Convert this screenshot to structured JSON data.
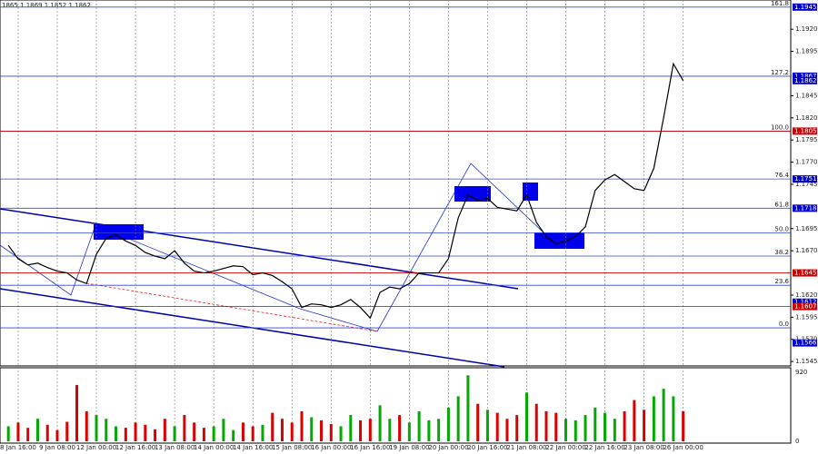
{
  "chart_data": {
    "type": "line",
    "header": "1865 1.1869 1.1852 1.1862",
    "color": "#000000",
    "categories": [
      null,
      "8 Jan 16:00",
      null,
      null,
      null,
      "9 Jan 08:00",
      null,
      null,
      null,
      "12 Jan 00:00",
      null,
      null,
      null,
      "12 Jan 16:00",
      null,
      null,
      null,
      "13 Jan 08:00",
      null,
      null,
      null,
      "14 Jan 00:00",
      null,
      null,
      null,
      "14 Jan 16:00",
      null,
      null,
      null,
      "15 Jan 08:00",
      null,
      null,
      null,
      "16 Jan 00:00",
      null,
      null,
      null,
      "16 Jan 16:00",
      null,
      null,
      null,
      "19 Jan 08:00",
      null,
      null,
      null,
      "20 Jan 00:00",
      null,
      null,
      null,
      "20 Jan 16:00",
      null,
      null,
      null,
      "21 Jan 08:00",
      null,
      null,
      null,
      "22 Jan 00:00",
      null,
      null,
      null,
      "22 Jan 16:00",
      null,
      null,
      null,
      "23 Jan 08:00",
      null,
      null,
      null,
      "26 Jan 00:00"
    ],
    "values": [
      1.1676,
      1.1661,
      1.1654,
      1.1656,
      1.1651,
      1.1647,
      1.1645,
      1.1637,
      1.1633,
      1.1666,
      1.1684,
      1.1688,
      1.1681,
      1.1676,
      1.1668,
      1.1664,
      1.1661,
      1.167,
      1.1656,
      1.1647,
      1.1645,
      1.1647,
      1.165,
      1.1653,
      1.1652,
      1.1643,
      1.1645,
      1.1642,
      1.1635,
      1.1627,
      1.1606,
      1.161,
      1.1609,
      1.1606,
      1.1609,
      1.1615,
      1.1606,
      1.1594,
      1.1623,
      1.1629,
      1.1627,
      1.1633,
      1.1645,
      1.1645,
      1.1645,
      1.1661,
      1.1707,
      1.1733,
      1.1727,
      1.1729,
      1.1719,
      1.1717,
      1.1715,
      1.1733,
      1.1702,
      1.1686,
      1.1678,
      1.1681,
      1.1686,
      1.1697,
      1.1738,
      1.175,
      1.1756,
      1.1748,
      1.174,
      1.1738,
      1.1763,
      1.182,
      1.1881,
      1.1862
    ],
    "ylim": [
      1.154,
      1.1953
    ],
    "yticks": [
      1.1545,
      {
        "value": 1.157,
        "label": "1.1570"
      },
      1.1595,
      {
        "value": 1.162,
        "label": "1.1620"
      },
      {
        "value": 1.167,
        "label": "1.1670"
      },
      1.1695,
      1.1745,
      {
        "value": 1.177,
        "label": "1.1770"
      },
      1.1795,
      {
        "value": 1.182,
        "label": "1.1820"
      },
      1.1845,
      1.1895,
      {
        "value": 1.192,
        "label": "1.1920"
      }
    ],
    "price_levels": [
      {
        "value": 1.1945,
        "color": "#0000cc"
      },
      {
        "value": 1.1867,
        "color": "#0000cc"
      },
      {
        "value": 1.1862,
        "color": "#0000cc"
      },
      {
        "value": 1.1805,
        "color": "#cc0000"
      },
      {
        "value": 1.1751,
        "color": "#0000cc"
      },
      {
        "value": 1.1718,
        "color": "#0000cc"
      },
      {
        "value": 1.1645,
        "color": "#cc0000"
      },
      {
        "value": 1.1612,
        "color": "#0000cc"
      },
      {
        "value": 1.1607,
        "color": "#cc0000"
      },
      {
        "value": 1.1566,
        "color": "#0000cc"
      }
    ],
    "fib_levels": [
      {
        "label": "161.8",
        "value": 1.1945
      },
      {
        "label": "127.2",
        "value": 1.1867
      },
      {
        "label": "100.0",
        "value": 1.1805
      },
      {
        "label": "76.4",
        "value": 1.1751
      },
      {
        "label": "61.8",
        "value": 1.1718
      },
      {
        "label": "50.0",
        "value": 1.169
      },
      {
        "label": "38.2",
        "value": 1.1664
      },
      {
        "label": "23.6",
        "value": 1.1631
      },
      {
        "label": "0.0",
        "value": 1.1583
      }
    ],
    "volume": {
      "values": [
        200,
        250,
        180,
        300,
        220,
        150,
        260,
        750,
        400,
        350,
        300,
        200,
        180,
        250,
        220,
        160,
        300,
        200,
        350,
        250,
        180,
        200,
        300,
        150,
        250,
        200,
        220,
        380,
        300,
        250,
        400,
        320,
        280,
        230,
        200,
        350,
        280,
        300,
        480,
        300,
        350,
        250,
        400,
        280,
        300,
        450,
        600,
        880,
        500,
        420,
        380,
        300,
        350,
        650,
        500,
        400,
        380,
        300,
        280,
        350,
        450,
        380,
        300,
        400,
        550,
        420,
        600,
        700,
        600,
        400
      ],
      "ylim": [
        0,
        920
      ],
      "yticks": [
        0,
        920
      ],
      "up_color": "#00aa00",
      "down_color": "#dd0000"
    }
  }
}
